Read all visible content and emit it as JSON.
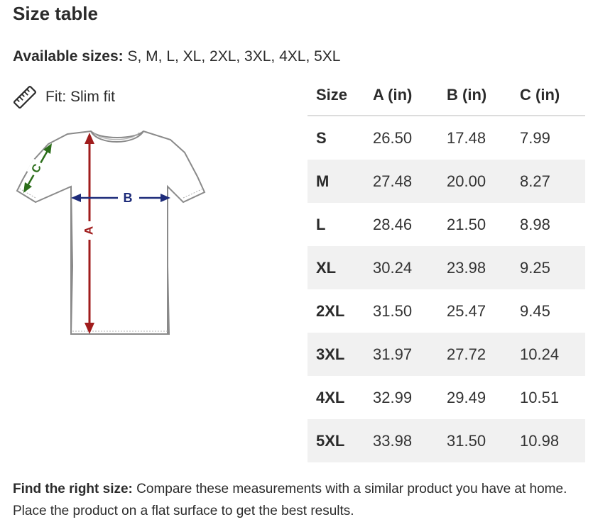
{
  "title": "Size table",
  "available": {
    "label": "Available sizes:",
    "value": " S, M, L, XL, 2XL, 3XL, 4XL, 5XL"
  },
  "fit": {
    "icon": "ruler-icon",
    "text": "Fit: Slim fit"
  },
  "diagram": {
    "label_a": "A",
    "label_b": "B",
    "label_c": "C"
  },
  "table": {
    "headers": [
      "Size",
      "A (in)",
      "B (in)",
      "C (in)"
    ],
    "rows": [
      [
        "S",
        "26.50",
        "17.48",
        "7.99"
      ],
      [
        "M",
        "27.48",
        "20.00",
        "8.27"
      ],
      [
        "L",
        "28.46",
        "21.50",
        "8.98"
      ],
      [
        "XL",
        "30.24",
        "23.98",
        "9.25"
      ],
      [
        "2XL",
        "31.50",
        "25.47",
        "9.45"
      ],
      [
        "3XL",
        "31.97",
        "27.72",
        "10.24"
      ],
      [
        "4XL",
        "32.99",
        "29.49",
        "10.51"
      ],
      [
        "5XL",
        "33.98",
        "31.50",
        "10.98"
      ]
    ]
  },
  "footer": {
    "bold": "Find the right size:",
    "text": " Compare these measurements with a similar product you have at home. Place the product on a flat surface to get the best results."
  }
}
